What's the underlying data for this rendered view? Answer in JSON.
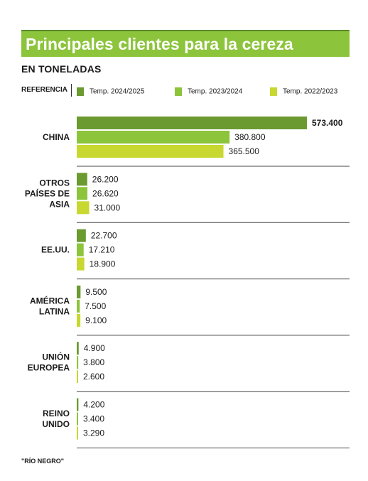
{
  "title": "Principales clientes para la cereza",
  "subtitle": "EN TONELADAS",
  "legend_title": "REFERENCIA",
  "source": "\"RÍO NEGRO\"",
  "colors": {
    "title_bg": "#8cc43c",
    "series": [
      "#6a9a30",
      "#8cc43c",
      "#c8d830"
    ],
    "separator": "#444444"
  },
  "chart_data": {
    "type": "bar",
    "orientation": "horizontal",
    "grouped": true,
    "categories": [
      [
        "CHINA"
      ],
      [
        "OTROS",
        "PAÍSES DE",
        "ASIA"
      ],
      [
        "EE.UU."
      ],
      [
        "AMÉRICA",
        "LATINA"
      ],
      [
        "UNIÓN",
        "EUROPEA"
      ],
      [
        "REINO",
        "UNIDO"
      ]
    ],
    "series": [
      {
        "name": "Temp. 2024/2025",
        "values": [
          573400,
          26200,
          22700,
          9500,
          4900,
          4200
        ],
        "labels": [
          "573.400",
          "26.200",
          "22.700",
          "9.500",
          "4.900",
          "4.200"
        ]
      },
      {
        "name": "Temp. 2023/2024",
        "values": [
          380800,
          26620,
          17210,
          7500,
          3800,
          3400
        ],
        "labels": [
          "380.800",
          "26.620",
          "17.210",
          "7.500",
          "3.800",
          "3.400"
        ]
      },
      {
        "name": "Temp. 2022/2023",
        "values": [
          365500,
          31000,
          18900,
          9100,
          2600,
          3290
        ],
        "labels": [
          "365.500",
          "31.000",
          "18.900",
          "9.100",
          "2.600",
          "3.290"
        ]
      }
    ],
    "ylabel": "EN TONELADAS",
    "xlim": [
      0,
      573400
    ],
    "grid": false,
    "legend_position": "top"
  }
}
